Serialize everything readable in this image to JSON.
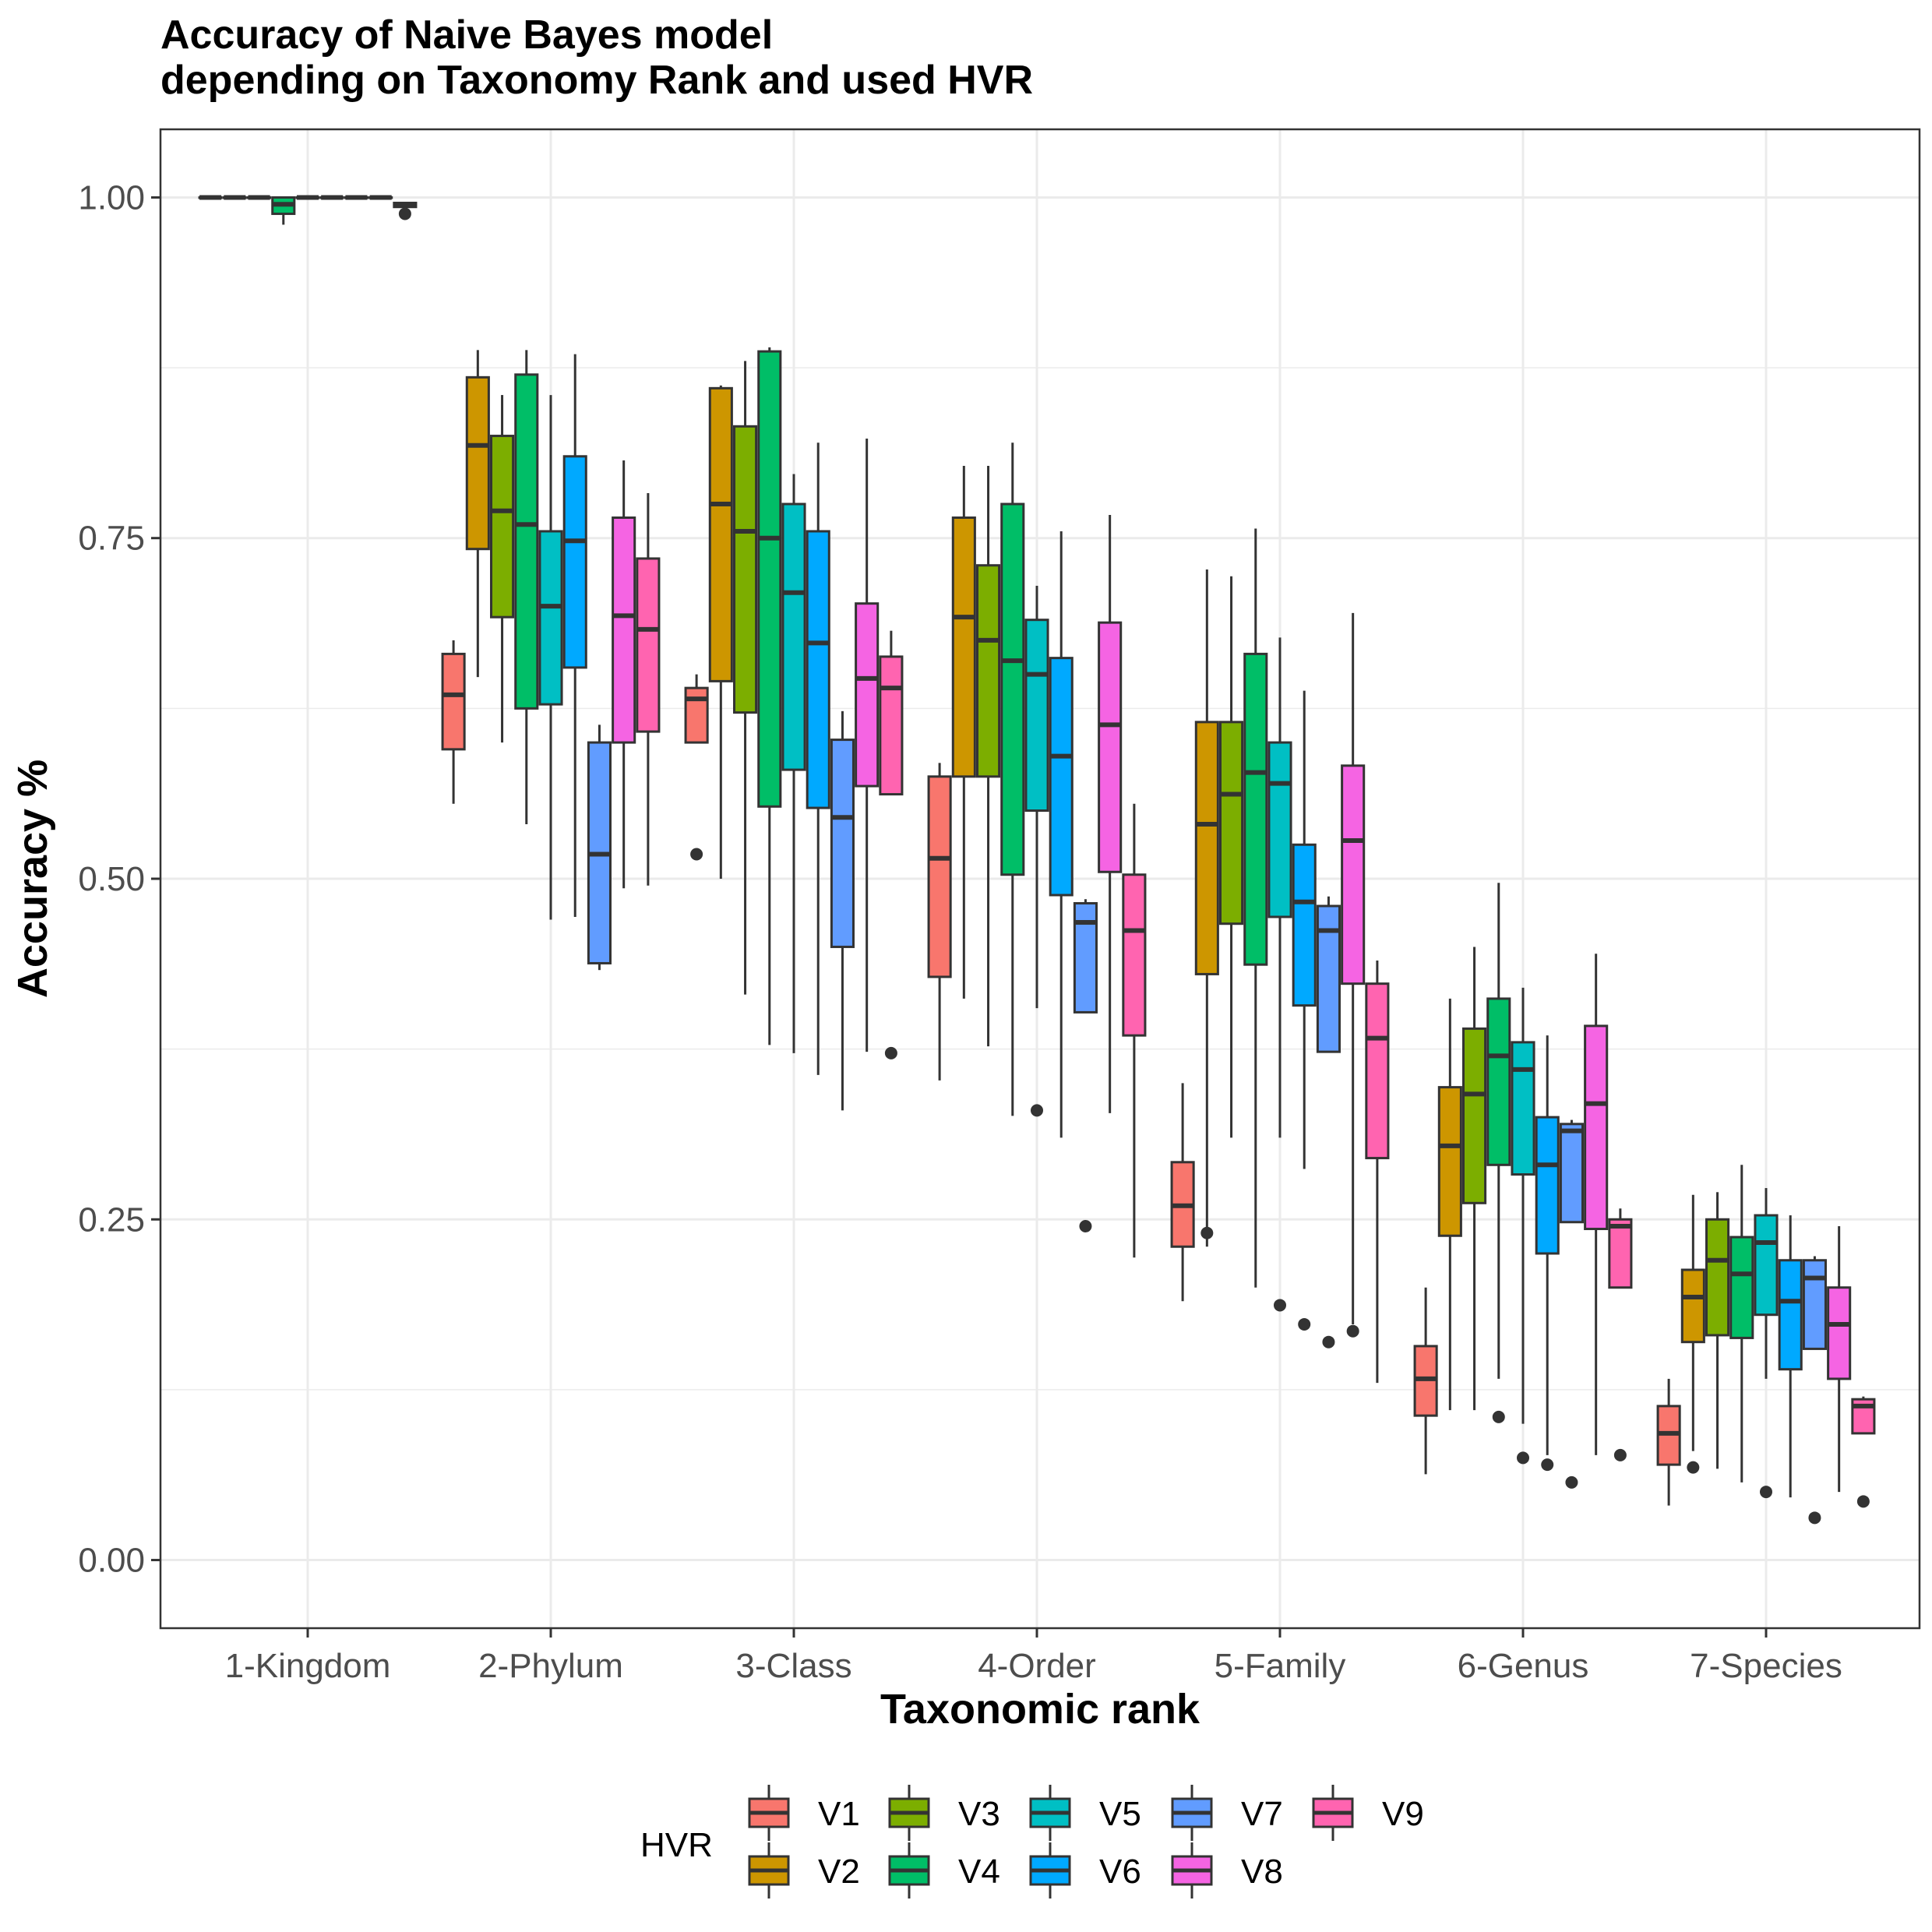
{
  "chart_data": {
    "type": "box",
    "title": "Accuracy of Naive Bayes model\ndepending on Taxonomy Rank and used HVR",
    "xlabel": "Taxonomic rank",
    "ylabel": "Accuracy %",
    "ylim": [
      -0.05,
      1.05
    ],
    "yticks": [
      0.0,
      0.25,
      0.5,
      0.75,
      1.0
    ],
    "ytick_labels": [
      "0.00",
      "0.25",
      "0.50",
      "0.75",
      "1.00"
    ],
    "grid": true,
    "legend_position": "bottom",
    "legend_title": "HVR",
    "categories": [
      "1-Kingdom",
      "2-Phylum",
      "3-Class",
      "4-Order",
      "5-Family",
      "6-Genus",
      "7-Species"
    ],
    "series": [
      {
        "name": "V1",
        "color": "#F8766D",
        "boxes": [
          {
            "min": 1.0,
            "q1": 1.0,
            "median": 1.0,
            "q3": 1.0,
            "max": 1.0,
            "outliers": []
          },
          {
            "min": 0.555,
            "q1": 0.595,
            "median": 0.635,
            "q3": 0.665,
            "max": 0.675,
            "outliers": []
          },
          {
            "min": 0.6,
            "q1": 0.6,
            "median": 0.632,
            "q3": 0.64,
            "max": 0.65,
            "outliers": [
              0.518
            ]
          },
          {
            "min": 0.352,
            "q1": 0.428,
            "median": 0.515,
            "q3": 0.575,
            "max": 0.585,
            "outliers": []
          },
          {
            "min": 0.19,
            "q1": 0.23,
            "median": 0.26,
            "q3": 0.292,
            "max": 0.35,
            "outliers": []
          },
          {
            "min": 0.063,
            "q1": 0.106,
            "median": 0.133,
            "q3": 0.157,
            "max": 0.2,
            "outliers": []
          },
          {
            "min": 0.04,
            "q1": 0.07,
            "median": 0.093,
            "q3": 0.113,
            "max": 0.133,
            "outliers": []
          }
        ]
      },
      {
        "name": "V2",
        "color": "#CD9600",
        "boxes": [
          {
            "min": 1.0,
            "q1": 1.0,
            "median": 1.0,
            "q3": 1.0,
            "max": 1.0,
            "outliers": []
          },
          {
            "min": 0.648,
            "q1": 0.742,
            "median": 0.818,
            "q3": 0.868,
            "max": 0.888,
            "outliers": []
          },
          {
            "min": 0.5,
            "q1": 0.645,
            "median": 0.775,
            "q3": 0.86,
            "max": 0.862,
            "outliers": []
          },
          {
            "min": 0.412,
            "q1": 0.575,
            "median": 0.692,
            "q3": 0.765,
            "max": 0.803,
            "outliers": []
          },
          {
            "min": 0.23,
            "q1": 0.43,
            "median": 0.54,
            "q3": 0.615,
            "max": 0.727,
            "outliers": [
              0.24
            ]
          },
          {
            "min": 0.11,
            "q1": 0.238,
            "median": 0.304,
            "q3": 0.347,
            "max": 0.412,
            "outliers": []
          },
          {
            "min": 0.08,
            "q1": 0.16,
            "median": 0.193,
            "q3": 0.213,
            "max": 0.268,
            "outliers": [
              0.068
            ]
          }
        ]
      },
      {
        "name": "V3",
        "color": "#7CAE00",
        "boxes": [
          {
            "min": 1.0,
            "q1": 1.0,
            "median": 1.0,
            "q3": 1.0,
            "max": 1.0,
            "outliers": []
          },
          {
            "min": 0.6,
            "q1": 0.692,
            "median": 0.77,
            "q3": 0.825,
            "max": 0.855,
            "outliers": []
          },
          {
            "min": 0.415,
            "q1": 0.622,
            "median": 0.755,
            "q3": 0.832,
            "max": 0.88,
            "outliers": []
          },
          {
            "min": 0.377,
            "q1": 0.575,
            "median": 0.675,
            "q3": 0.73,
            "max": 0.803,
            "outliers": []
          },
          {
            "min": 0.31,
            "q1": 0.467,
            "median": 0.562,
            "q3": 0.615,
            "max": 0.722,
            "outliers": []
          },
          {
            "min": 0.11,
            "q1": 0.262,
            "median": 0.342,
            "q3": 0.39,
            "max": 0.45,
            "outliers": []
          },
          {
            "min": 0.067,
            "q1": 0.165,
            "median": 0.22,
            "q3": 0.25,
            "max": 0.27,
            "outliers": []
          }
        ]
      },
      {
        "name": "V4",
        "color": "#00BE67",
        "boxes": [
          {
            "min": 0.98,
            "q1": 0.988,
            "median": 0.995,
            "q3": 1.0,
            "max": 1.0,
            "outliers": []
          },
          {
            "min": 0.54,
            "q1": 0.625,
            "median": 0.76,
            "q3": 0.87,
            "max": 0.888,
            "outliers": []
          },
          {
            "min": 0.378,
            "q1": 0.553,
            "median": 0.75,
            "q3": 0.887,
            "max": 0.89,
            "outliers": []
          },
          {
            "min": 0.326,
            "q1": 0.503,
            "median": 0.66,
            "q3": 0.775,
            "max": 0.82,
            "outliers": []
          },
          {
            "min": 0.2,
            "q1": 0.437,
            "median": 0.578,
            "q3": 0.665,
            "max": 0.757,
            "outliers": []
          },
          {
            "min": 0.133,
            "q1": 0.29,
            "median": 0.37,
            "q3": 0.412,
            "max": 0.497,
            "outliers": [
              0.105
            ]
          },
          {
            "min": 0.057,
            "q1": 0.163,
            "median": 0.21,
            "q3": 0.237,
            "max": 0.29,
            "outliers": []
          }
        ]
      },
      {
        "name": "V5",
        "color": "#00BFC4",
        "boxes": [
          {
            "min": 1.0,
            "q1": 1.0,
            "median": 1.0,
            "q3": 1.0,
            "max": 1.0,
            "outliers": []
          },
          {
            "min": 0.47,
            "q1": 0.628,
            "median": 0.7,
            "q3": 0.755,
            "max": 0.855,
            "outliers": []
          },
          {
            "min": 0.372,
            "q1": 0.58,
            "median": 0.71,
            "q3": 0.775,
            "max": 0.797,
            "outliers": []
          },
          {
            "min": 0.405,
            "q1": 0.55,
            "median": 0.65,
            "q3": 0.69,
            "max": 0.715,
            "outliers": [
              0.33
            ]
          },
          {
            "min": 0.31,
            "q1": 0.472,
            "median": 0.57,
            "q3": 0.6,
            "max": 0.677,
            "outliers": [
              0.187
            ]
          },
          {
            "min": 0.1,
            "q1": 0.283,
            "median": 0.36,
            "q3": 0.38,
            "max": 0.42,
            "outliers": [
              0.075
            ]
          },
          {
            "min": 0.133,
            "q1": 0.18,
            "median": 0.233,
            "q3": 0.253,
            "max": 0.273,
            "outliers": [
              0.05
            ]
          }
        ]
      },
      {
        "name": "V6",
        "color": "#00A9FF",
        "boxes": [
          {
            "min": 1.0,
            "q1": 1.0,
            "median": 1.0,
            "q3": 1.0,
            "max": 1.0,
            "outliers": []
          },
          {
            "min": 0.472,
            "q1": 0.655,
            "median": 0.748,
            "q3": 0.81,
            "max": 0.885,
            "outliers": []
          },
          {
            "min": 0.356,
            "q1": 0.552,
            "median": 0.673,
            "q3": 0.755,
            "max": 0.82,
            "outliers": []
          },
          {
            "min": 0.31,
            "q1": 0.488,
            "median": 0.59,
            "q3": 0.662,
            "max": 0.755,
            "outliers": []
          },
          {
            "min": 0.287,
            "q1": 0.407,
            "median": 0.483,
            "q3": 0.525,
            "max": 0.638,
            "outliers": [
              0.173
            ]
          },
          {
            "min": 0.077,
            "q1": 0.225,
            "median": 0.29,
            "q3": 0.325,
            "max": 0.385,
            "outliers": [
              0.07
            ]
          },
          {
            "min": 0.046,
            "q1": 0.14,
            "median": 0.19,
            "q3": 0.22,
            "max": 0.253,
            "outliers": []
          }
        ]
      },
      {
        "name": "V7",
        "color": "#619CFF",
        "boxes": [
          {
            "min": 1.0,
            "q1": 1.0,
            "median": 1.0,
            "q3": 1.0,
            "max": 1.0,
            "outliers": []
          },
          {
            "min": 0.433,
            "q1": 0.438,
            "median": 0.518,
            "q3": 0.6,
            "max": 0.613,
            "outliers": []
          },
          {
            "min": 0.33,
            "q1": 0.45,
            "median": 0.545,
            "q3": 0.602,
            "max": 0.623,
            "outliers": []
          },
          {
            "min": 0.402,
            "q1": 0.402,
            "median": 0.468,
            "q3": 0.482,
            "max": 0.485,
            "outliers": [
              0.245
            ]
          },
          {
            "min": 0.373,
            "q1": 0.373,
            "median": 0.462,
            "q3": 0.48,
            "max": 0.487,
            "outliers": [
              0.16
            ]
          },
          {
            "min": 0.248,
            "q1": 0.248,
            "median": 0.315,
            "q3": 0.32,
            "max": 0.323,
            "outliers": [
              0.057
            ]
          },
          {
            "min": 0.155,
            "q1": 0.155,
            "median": 0.207,
            "q3": 0.22,
            "max": 0.223,
            "outliers": [
              0.031
            ]
          }
        ]
      },
      {
        "name": "V8",
        "color": "#F564E3",
        "boxes": [
          {
            "min": 1.0,
            "q1": 1.0,
            "median": 1.0,
            "q3": 1.0,
            "max": 1.0,
            "outliers": []
          },
          {
            "min": 0.493,
            "q1": 0.6,
            "median": 0.693,
            "q3": 0.765,
            "max": 0.807,
            "outliers": []
          },
          {
            "min": 0.373,
            "q1": 0.568,
            "median": 0.647,
            "q3": 0.702,
            "max": 0.823,
            "outliers": []
          },
          {
            "min": 0.328,
            "q1": 0.505,
            "median": 0.613,
            "q3": 0.688,
            "max": 0.767,
            "outliers": []
          },
          {
            "min": 0.173,
            "q1": 0.423,
            "median": 0.528,
            "q3": 0.583,
            "max": 0.695,
            "outliers": [
              0.168
            ]
          },
          {
            "min": 0.077,
            "q1": 0.243,
            "median": 0.335,
            "q3": 0.392,
            "max": 0.445,
            "outliers": []
          },
          {
            "min": 0.05,
            "q1": 0.133,
            "median": 0.173,
            "q3": 0.2,
            "max": 0.245,
            "outliers": []
          }
        ]
      },
      {
        "name": "V9",
        "color": "#FF64B0",
        "boxes": [
          {
            "min": 0.993,
            "q1": 0.993,
            "median": 0.995,
            "q3": 0.996,
            "max": 0.996,
            "outliers": [
              0.988
            ]
          },
          {
            "min": 0.495,
            "q1": 0.608,
            "median": 0.683,
            "q3": 0.735,
            "max": 0.783,
            "outliers": []
          },
          {
            "min": 0.562,
            "q1": 0.562,
            "median": 0.64,
            "q3": 0.663,
            "max": 0.682,
            "outliers": [
              0.372
            ]
          },
          {
            "min": 0.222,
            "q1": 0.385,
            "median": 0.462,
            "q3": 0.503,
            "max": 0.555,
            "outliers": []
          },
          {
            "min": 0.13,
            "q1": 0.295,
            "median": 0.383,
            "q3": 0.423,
            "max": 0.44,
            "outliers": []
          },
          {
            "min": 0.2,
            "q1": 0.2,
            "median": 0.245,
            "q3": 0.25,
            "max": 0.258,
            "outliers": [
              0.077
            ]
          },
          {
            "min": 0.093,
            "q1": 0.093,
            "median": 0.113,
            "q3": 0.118,
            "max": 0.12,
            "outliers": [
              0.043
            ]
          }
        ]
      }
    ]
  }
}
